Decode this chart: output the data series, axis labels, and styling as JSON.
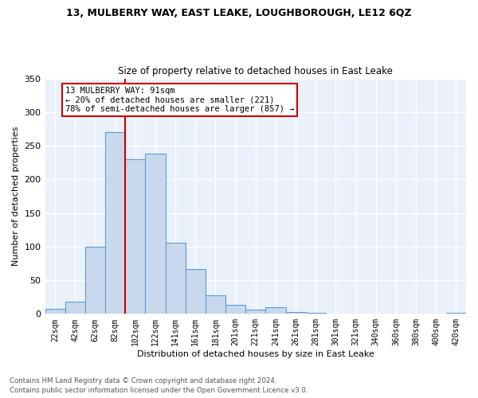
{
  "title": "13, MULBERRY WAY, EAST LEAKE, LOUGHBOROUGH, LE12 6QZ",
  "subtitle": "Size of property relative to detached houses in East Leake",
  "xlabel": "Distribution of detached houses by size in East Leake",
  "ylabel": "Number of detached properties",
  "bar_labels": [
    "22sqm",
    "42sqm",
    "62sqm",
    "82sqm",
    "102sqm",
    "122sqm",
    "141sqm",
    "161sqm",
    "181sqm",
    "201sqm",
    "221sqm",
    "241sqm",
    "261sqm",
    "281sqm",
    "301sqm",
    "321sqm",
    "340sqm",
    "360sqm",
    "380sqm",
    "400sqm",
    "420sqm"
  ],
  "bar_values": [
    7,
    18,
    100,
    270,
    230,
    238,
    106,
    67,
    28,
    14,
    6,
    10,
    3,
    2,
    0,
    0,
    0,
    0,
    0,
    0,
    2
  ],
  "bar_color": "#c9d9ed",
  "bar_edge_color": "#5b9bd5",
  "bg_color": "#eaf1fb",
  "grid_color": "#ffffff",
  "property_line_color": "#cc0000",
  "annotation_text": "13 MULBERRY WAY: 91sqm\n← 20% of detached houses are smaller (221)\n78% of semi-detached houses are larger (857) →",
  "annotation_box_color": "#cc0000",
  "footer_line1": "Contains HM Land Registry data © Crown copyright and database right 2024.",
  "footer_line2": "Contains public sector information licensed under the Open Government Licence v3.0.",
  "ylim": [
    0,
    350
  ],
  "tick_positions": [
    0,
    1,
    2,
    3,
    4,
    5,
    6,
    7,
    8,
    9,
    10,
    11,
    12,
    13,
    14,
    15,
    16,
    17,
    18,
    19,
    20
  ]
}
